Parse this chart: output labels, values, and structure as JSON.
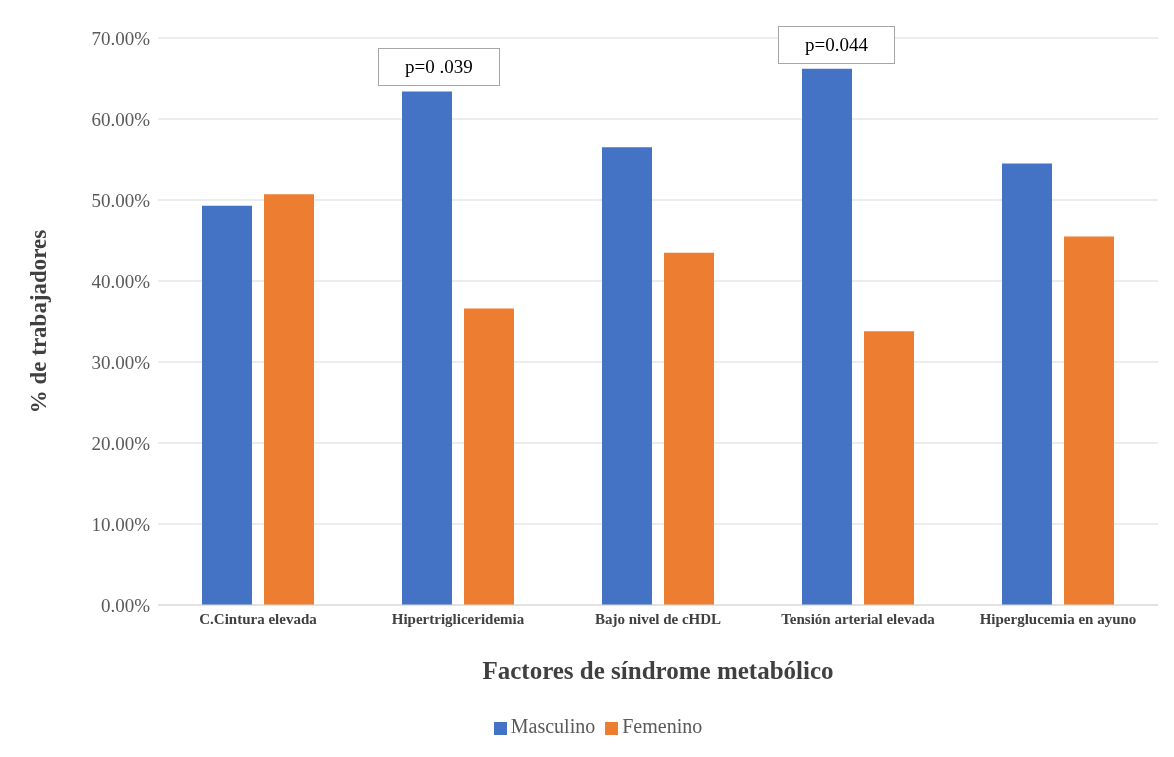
{
  "chart_data": {
    "type": "bar",
    "xlabel": "Factores de síndrome metabólico",
    "ylabel": "% de trabajadores",
    "categories": [
      "C.Cintura elevada",
      "Hipertrigliceridemia",
      "Bajo nivel de cHDL",
      "Tensión arterial elevada",
      "Hiperglucemia en ayuno"
    ],
    "series": [
      {
        "name": "Masculino",
        "color": "#4472c4",
        "values": [
          49.3,
          63.4,
          56.5,
          66.2,
          54.5
        ]
      },
      {
        "name": "Femenino",
        "color": "#ed7d31",
        "values": [
          50.7,
          36.6,
          43.5,
          33.8,
          45.5
        ]
      }
    ],
    "ylim": [
      0,
      70
    ],
    "yticks": [
      {
        "value": 0,
        "label": "0.00%"
      },
      {
        "value": 10,
        "label": "10.00%"
      },
      {
        "value": 20,
        "label": "20.00%"
      },
      {
        "value": 30,
        "label": "30.00%"
      },
      {
        "value": 40,
        "label": "40.00%"
      },
      {
        "value": 50,
        "label": "50.00%"
      },
      {
        "value": 60,
        "label": "60.00%"
      },
      {
        "value": 70,
        "label": "70.00%"
      }
    ],
    "annotations": [
      "p=0 .039",
      "p=0.044"
    ],
    "grid": "y",
    "legend": "bottom"
  }
}
